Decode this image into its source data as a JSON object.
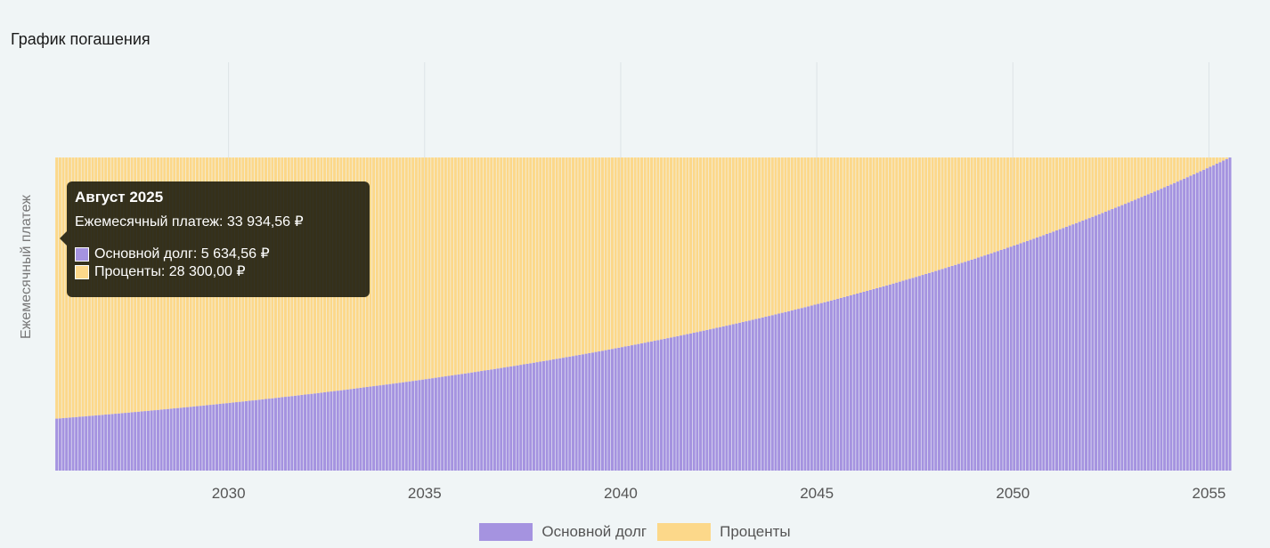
{
  "chart_title": "График погашения",
  "colors": {
    "principal": "#a593e0",
    "interest": "#fcd88a",
    "background": "#f0f5f6"
  },
  "tooltip": {
    "title": "Август 2025",
    "monthly_payment": "Ежемесячный платеж: 33 934,56 ₽",
    "rows": [
      {
        "label": "Основной долг: 5 634,56 ₽",
        "color": "#a593e0"
      },
      {
        "label": "Проценты: 28 300,00 ₽",
        "color": "#fcd88a"
      }
    ]
  },
  "chart_data": {
    "type": "bar",
    "stacked": true,
    "title": "График погашения",
    "xlabel": "",
    "ylabel": "Ежемесячный платеж",
    "x_start": "2025-08",
    "months": 360,
    "xlim": [
      2025.58,
      2055.58
    ],
    "ylim": [
      0,
      43000
    ],
    "monthly_payment": 33934.56,
    "x_ticks": [
      2030,
      2035,
      2040,
      2045,
      2050,
      2055
    ],
    "series": [
      {
        "name": "Основной долг",
        "first_value": 5634.56,
        "last_value": 33934.56,
        "color": "#a593e0"
      },
      {
        "name": "Проценты",
        "first_value": 28300.0,
        "last_value": 0,
        "color": "#fcd88a"
      }
    ],
    "grid": true,
    "legend": "bottom-center"
  }
}
